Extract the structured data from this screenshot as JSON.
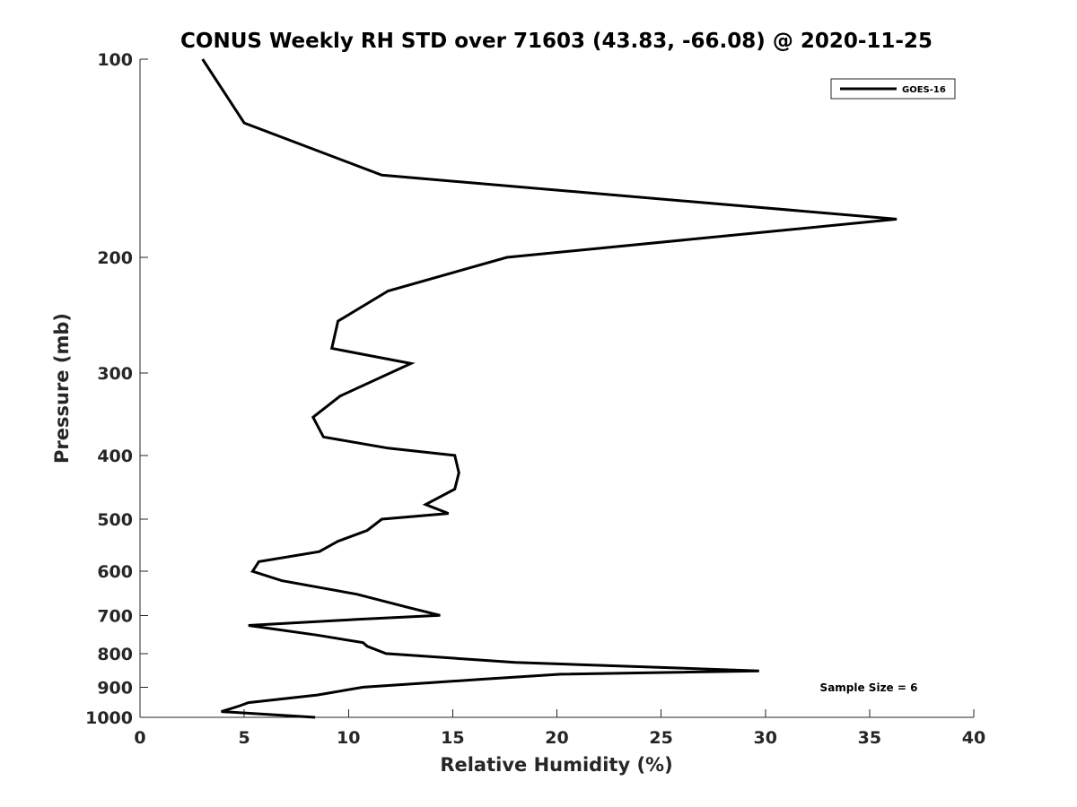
{
  "chart_data": {
    "type": "line",
    "title": "CONUS Weekly RH STD over 71603 (43.83, -66.08) @ 2020-11-25",
    "xlabel": "Relative Humidity (%)",
    "ylabel": "Pressure (mb)",
    "xlim": [
      0,
      40
    ],
    "ylim": [
      100,
      1000
    ],
    "yscale": "log",
    "y_reversed": true,
    "x_ticks": [
      0,
      5,
      10,
      15,
      20,
      25,
      30,
      35,
      40
    ],
    "x_tick_labels": [
      "0",
      "5",
      "10",
      "15",
      "20",
      "25",
      "30",
      "35",
      "40"
    ],
    "y_ticks": [
      100,
      200,
      300,
      400,
      500,
      600,
      700,
      800,
      900,
      1000
    ],
    "y_tick_labels": [
      "100",
      "200",
      "300",
      "400",
      "500",
      "600",
      "700",
      "800",
      "900",
      "1000"
    ],
    "legend": {
      "position": "top-right",
      "entries": [
        "GOES-16"
      ]
    },
    "annotation": "Sample Size = 6",
    "series": [
      {
        "name": "GOES-16",
        "color": "#000000",
        "points": [
          [
            3.0,
            100
          ],
          [
            5.0,
            125
          ],
          [
            11.6,
            150
          ],
          [
            36.3,
            175
          ],
          [
            17.6,
            200
          ],
          [
            11.9,
            225
          ],
          [
            9.5,
            250
          ],
          [
            9.2,
            275
          ],
          [
            13.0,
            290
          ],
          [
            9.6,
            325
          ],
          [
            8.3,
            350
          ],
          [
            8.8,
            375
          ],
          [
            11.9,
            390
          ],
          [
            15.1,
            400
          ],
          [
            15.3,
            425
          ],
          [
            15.1,
            450
          ],
          [
            13.7,
            475
          ],
          [
            14.8,
            490
          ],
          [
            11.6,
            500
          ],
          [
            10.9,
            520
          ],
          [
            9.5,
            540
          ],
          [
            8.6,
            560
          ],
          [
            5.7,
            580
          ],
          [
            5.4,
            600
          ],
          [
            6.8,
            620
          ],
          [
            10.4,
            650
          ],
          [
            12.8,
            680
          ],
          [
            14.4,
            700
          ],
          [
            10.4,
            710
          ],
          [
            5.2,
            725
          ],
          [
            8.5,
            750
          ],
          [
            10.7,
            770
          ],
          [
            10.9,
            780
          ],
          [
            11.8,
            800
          ],
          [
            18.0,
            825
          ],
          [
            29.7,
            850
          ],
          [
            20.2,
            860
          ],
          [
            16.5,
            875
          ],
          [
            10.7,
            900
          ],
          [
            8.5,
            925
          ],
          [
            5.2,
            950
          ],
          [
            4.8,
            960
          ],
          [
            3.9,
            980
          ],
          [
            8.4,
            1000
          ]
        ]
      }
    ]
  }
}
